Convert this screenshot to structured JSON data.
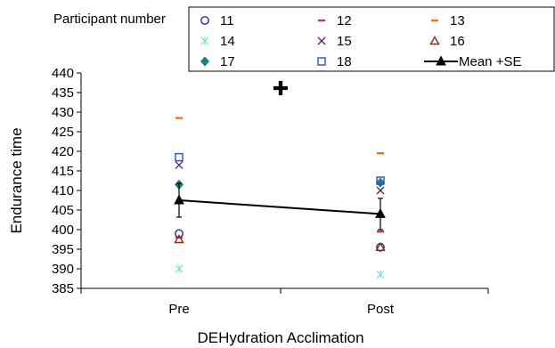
{
  "chart_data": {
    "type": "scatter",
    "xlabel": "DEHydration Acclimation",
    "ylabel": "Endurance time",
    "categories": [
      "Pre",
      "Post"
    ],
    "ylim": [
      385,
      440
    ],
    "yticks": [
      385,
      390,
      395,
      400,
      405,
      410,
      415,
      420,
      425,
      430,
      435,
      440
    ],
    "grid": false,
    "legend_title": "Participant number",
    "legend_position": "top",
    "annotation": "✚",
    "series": [
      {
        "name": "11",
        "marker": "circle-open",
        "color": "#2b2b8a",
        "values": [
          399,
          395.5
        ]
      },
      {
        "name": "12",
        "marker": "dash",
        "color": "#c0308a",
        "values": [
          398,
          399.5
        ]
      },
      {
        "name": "13",
        "marker": "dash",
        "color": "#f07020",
        "values": [
          428.5,
          419.5
        ]
      },
      {
        "name": "14",
        "marker": "asterisk",
        "color": "#7fdede",
        "values": [
          390,
          388.5
        ]
      },
      {
        "name": "15",
        "marker": "x",
        "color": "#6a1a6a",
        "values": [
          416.5,
          410
        ]
      },
      {
        "name": "16",
        "marker": "triangle-open",
        "color": "#8b2a10",
        "values": [
          397.5,
          395.5
        ]
      },
      {
        "name": "17",
        "marker": "diamond",
        "color": "#1a8080",
        "values": [
          411.5,
          412
        ]
      },
      {
        "name": "18",
        "marker": "square-open",
        "color": "#3050b0",
        "values": [
          418.5,
          412.5
        ]
      },
      {
        "name": "Mean +SE",
        "marker": "triangle",
        "color": "#000000",
        "values": [
          407.5,
          404
        ],
        "se": [
          4.3,
          4.0
        ]
      }
    ]
  }
}
